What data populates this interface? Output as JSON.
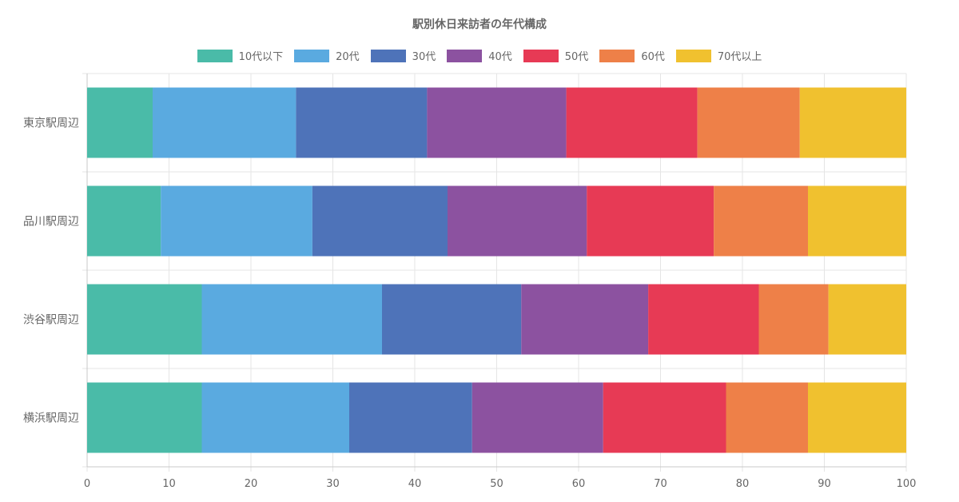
{
  "chart_data": {
    "type": "bar",
    "orientation": "horizontal",
    "stacked": true,
    "title": "駅別休日来訪者の年代構成",
    "categories": [
      "東京駅周辺",
      "品川駅周辺",
      "渋谷駅周辺",
      "横浜駅周辺"
    ],
    "series": [
      {
        "name": "10代以下",
        "color": "#4abba8",
        "values": [
          8,
          9,
          14,
          14
        ]
      },
      {
        "name": "20代",
        "color": "#5aaae0",
        "values": [
          17.5,
          18.5,
          22,
          18
        ]
      },
      {
        "name": "30代",
        "color": "#4e73b9",
        "values": [
          16,
          16.5,
          17,
          15
        ]
      },
      {
        "name": "40代",
        "color": "#8c52a0",
        "values": [
          17,
          17,
          15.5,
          16
        ]
      },
      {
        "name": "50代",
        "color": "#e73a55",
        "values": [
          16,
          15.5,
          13.5,
          15
        ]
      },
      {
        "name": "60代",
        "color": "#ee8048",
        "values": [
          12.5,
          11.5,
          8.5,
          10
        ]
      },
      {
        "name": "70代以上",
        "color": "#f0c12f",
        "values": [
          13,
          12,
          9.5,
          12
        ]
      }
    ],
    "xlim": [
      0,
      100
    ],
    "xticks": [
      0,
      10,
      20,
      30,
      40,
      50,
      60,
      70,
      80,
      90,
      100
    ],
    "grid": true,
    "legend_position": "top"
  }
}
